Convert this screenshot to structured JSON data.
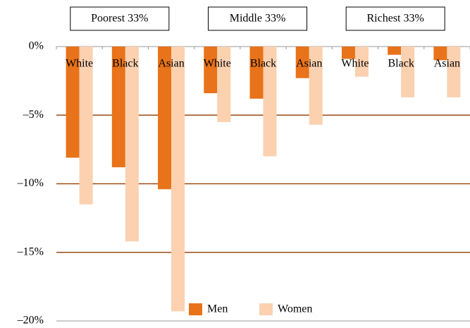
{
  "chart_data": {
    "type": "bar",
    "groups": [
      "Poorest 33%",
      "Middle 33%",
      "Richest 33%"
    ],
    "categories": [
      "White",
      "Black",
      "Asian",
      "White",
      "Black",
      "Asian",
      "White",
      "Black",
      "Asian"
    ],
    "series": [
      {
        "name": "Men",
        "color": "#e8731a",
        "values": [
          -8.1,
          -8.8,
          -10.4,
          -3.4,
          -3.8,
          -2.3,
          -0.9,
          -0.6,
          -1.0
        ]
      },
      {
        "name": "Women",
        "color": "#fbd1b0",
        "values": [
          -11.5,
          -14.2,
          -19.3,
          -5.5,
          -8.0,
          -5.7,
          -2.2,
          -3.7,
          -3.7
        ]
      }
    ],
    "ylim": [
      -20,
      0
    ],
    "yticks": [
      {
        "value": 0,
        "label": "0%"
      },
      {
        "value": -5,
        "label": "–5%"
      },
      {
        "value": -10,
        "label": "–10%"
      },
      {
        "value": -15,
        "label": "–15%"
      },
      {
        "value": -20,
        "label": "–20%"
      }
    ],
    "grid": true,
    "grid_color": "#9c4a14",
    "legend": "bottom"
  }
}
